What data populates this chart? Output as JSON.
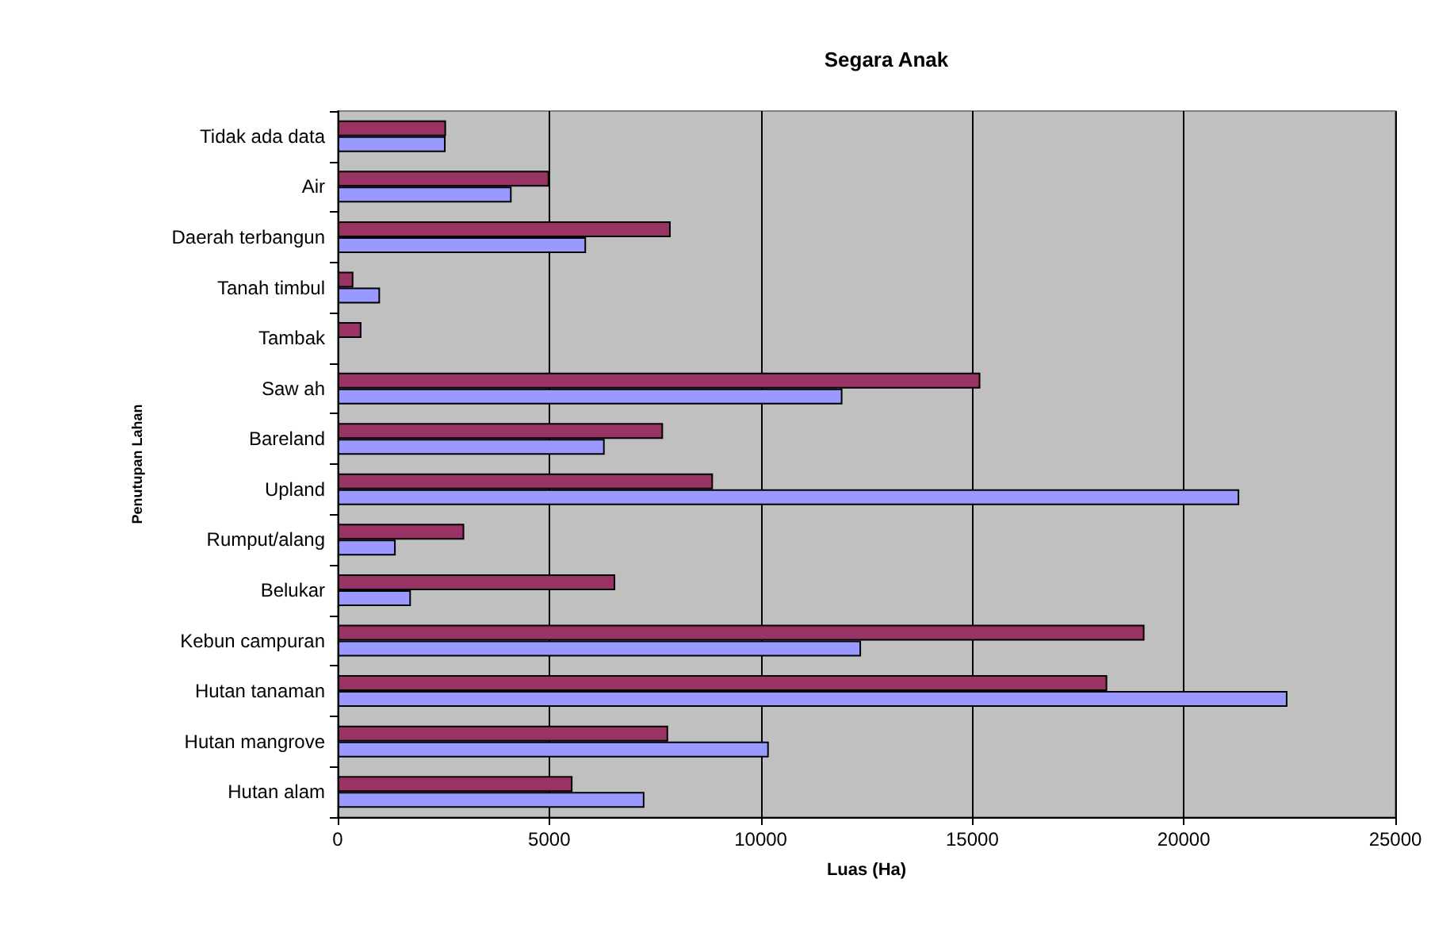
{
  "chart_data": {
    "type": "bar",
    "orientation": "horizontal",
    "title": "Segara Anak",
    "xlabel": "Luas (Ha)",
    "ylabel": "Penutupan Lahan",
    "categories": [
      "Tidak ada data",
      "Air",
      "Daerah terbangun",
      "Tanah timbul",
      "Tambak",
      "Saw ah",
      "Bareland",
      "Upland",
      "Rumput/alang",
      "Belukar",
      "Kebun campuran",
      "Hutan tanaman",
      "Hutan mangrove",
      "Hutan alam"
    ],
    "series": [
      {
        "color": "#993366",
        "values": [
          2560,
          5000,
          7870,
          370,
          560,
          15190,
          7690,
          8870,
          2990,
          6560,
          19070,
          18190,
          7810,
          5550
        ]
      },
      {
        "color": "#9999ff",
        "values": [
          2550,
          4110,
          5870,
          1000,
          null,
          11930,
          6310,
          21310,
          1370,
          1730,
          12370,
          22450,
          10190,
          7250
        ]
      }
    ],
    "xlim": [
      0,
      25000
    ],
    "xticks": [
      0,
      5000,
      10000,
      15000,
      20000,
      25000
    ],
    "grid": "x"
  }
}
